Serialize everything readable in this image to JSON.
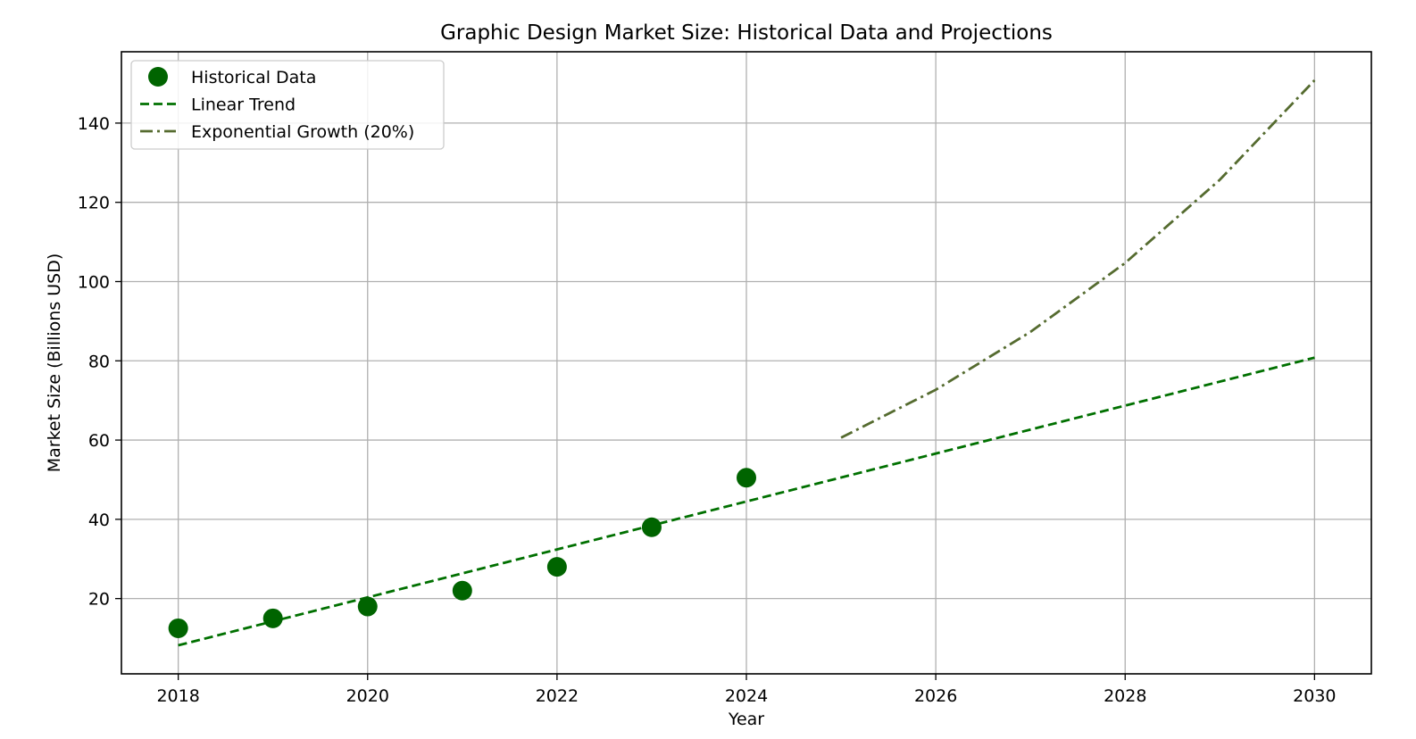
{
  "chart_data": {
    "type": "line",
    "title": "Graphic Design Market Size: Historical Data and Projections",
    "xlabel": "Year",
    "ylabel": "Market Size (Billions USD)",
    "xlim": [
      2017.4,
      2030.6
    ],
    "ylim": [
      1,
      158
    ],
    "x_ticks": [
      2018,
      2020,
      2022,
      2024,
      2026,
      2028,
      2030
    ],
    "y_ticks": [
      20,
      40,
      60,
      80,
      100,
      120,
      140
    ],
    "grid": true,
    "legend_position": "upper-left",
    "series": [
      {
        "name": "Historical Data",
        "kind": "scatter",
        "color": "#006400",
        "x": [
          2018,
          2019,
          2020,
          2021,
          2022,
          2023,
          2024
        ],
        "y": [
          12.5,
          15.0,
          18.0,
          22.0,
          28.0,
          38.0,
          50.5
        ]
      },
      {
        "name": "Linear Trend",
        "kind": "line",
        "style": "dashed",
        "color": "#007000",
        "x": [
          2018,
          2030
        ],
        "y": [
          8.2,
          80.8
        ]
      },
      {
        "name": "Exponential Growth (20%)",
        "kind": "line",
        "style": "dashdot",
        "color": "#556B2F",
        "x": [
          2025,
          2026,
          2027,
          2028,
          2029,
          2030
        ],
        "y": [
          60.6,
          72.7,
          87.3,
          104.7,
          125.7,
          150.8
        ]
      }
    ]
  }
}
